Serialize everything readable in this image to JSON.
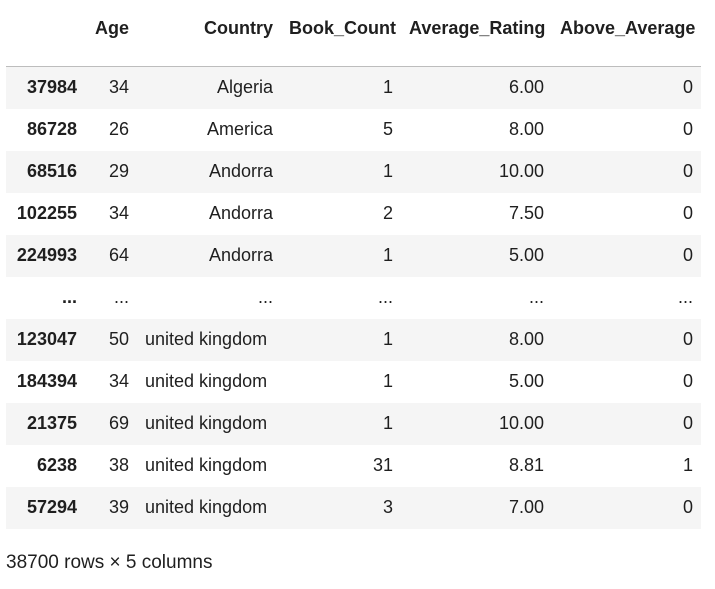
{
  "table": {
    "columns": [
      "Age",
      "Country",
      "Book_Count",
      "Average_Rating",
      "Above_Average"
    ],
    "rows": [
      {
        "index": "37984",
        "Age": "34",
        "Country": "Algeria",
        "Book_Count": "1",
        "Average_Rating": "6.00",
        "Above_Average": "0"
      },
      {
        "index": "86728",
        "Age": "26",
        "Country": "America",
        "Book_Count": "5",
        "Average_Rating": "8.00",
        "Above_Average": "0"
      },
      {
        "index": "68516",
        "Age": "29",
        "Country": "Andorra",
        "Book_Count": "1",
        "Average_Rating": "10.00",
        "Above_Average": "0"
      },
      {
        "index": "102255",
        "Age": "34",
        "Country": "Andorra",
        "Book_Count": "2",
        "Average_Rating": "7.50",
        "Above_Average": "0"
      },
      {
        "index": "224993",
        "Age": "64",
        "Country": "Andorra",
        "Book_Count": "1",
        "Average_Rating": "5.00",
        "Above_Average": "0"
      },
      {
        "index": "...",
        "Age": "...",
        "Country": "...",
        "Book_Count": "...",
        "Average_Rating": "...",
        "Above_Average": "..."
      },
      {
        "index": "123047",
        "Age": "50",
        "Country": "united kingdom",
        "Book_Count": "1",
        "Average_Rating": "8.00",
        "Above_Average": "0"
      },
      {
        "index": "184394",
        "Age": "34",
        "Country": "united kingdom",
        "Book_Count": "1",
        "Average_Rating": "5.00",
        "Above_Average": "0"
      },
      {
        "index": "21375",
        "Age": "69",
        "Country": "united kingdom",
        "Book_Count": "1",
        "Average_Rating": "10.00",
        "Above_Average": "0"
      },
      {
        "index": "6238",
        "Age": "38",
        "Country": "united kingdom",
        "Book_Count": "31",
        "Average_Rating": "8.81",
        "Above_Average": "1"
      },
      {
        "index": "57294",
        "Age": "39",
        "Country": "united kingdom",
        "Book_Count": "3",
        "Average_Rating": "7.00",
        "Above_Average": "0"
      }
    ]
  },
  "shape_caption": "38700 rows × 5 columns",
  "colors": {
    "row_shade": "#f5f5f5",
    "text": "#1f1f1f",
    "header_rule": "#bdbdbd"
  }
}
